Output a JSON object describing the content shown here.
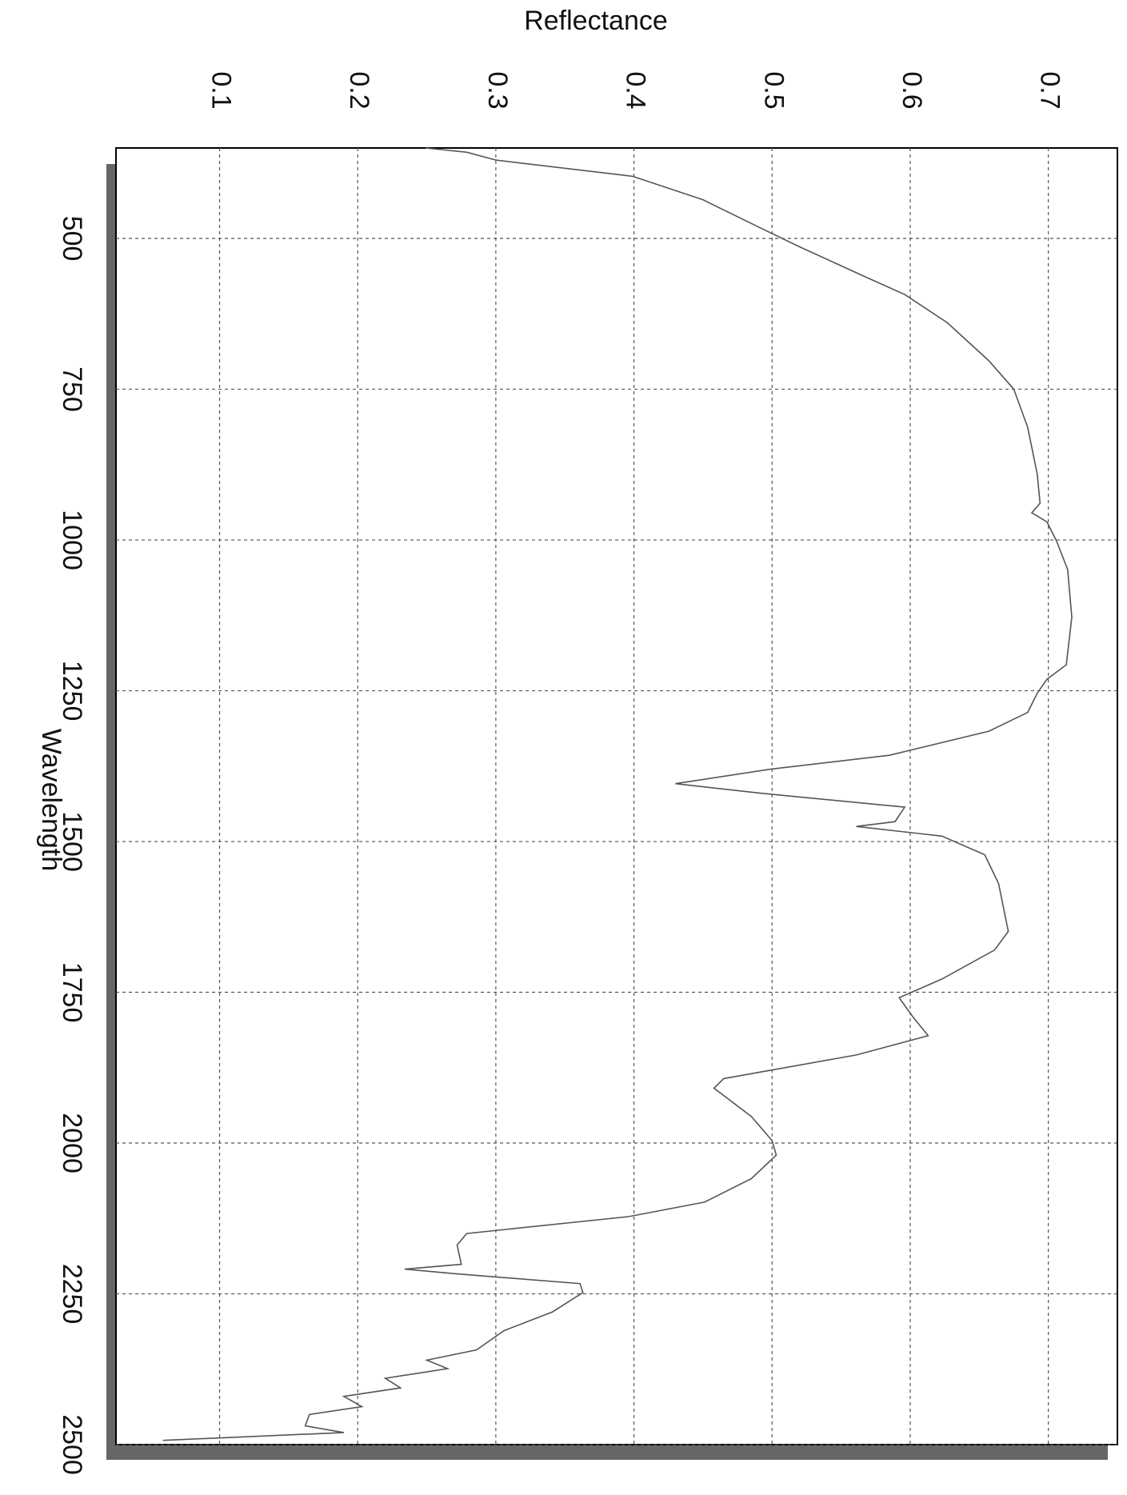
{
  "chart_data": {
    "type": "line",
    "xlabel": "Wavelength",
    "ylabel": "Reflectance",
    "x": [
      350,
      357,
      370,
      397,
      436,
      483,
      514,
      561,
      593,
      640,
      703,
      750,
      813,
      891,
      939,
      955,
      970,
      1002,
      1049,
      1128,
      1207,
      1231,
      1254,
      1286,
      1317,
      1357,
      1380,
      1404,
      1420,
      1443,
      1467,
      1475,
      1491,
      1522,
      1570,
      1649,
      1680,
      1728,
      1759,
      1791,
      1822,
      1854,
      1893,
      1909,
      1956,
      1996,
      2020,
      2059,
      2098,
      2122,
      2150,
      2169,
      2201,
      2209,
      2217,
      2233,
      2248,
      2280,
      2311,
      2343,
      2360,
      2374,
      2390,
      2406,
      2420,
      2437,
      2450,
      2469,
      2480,
      2493
    ],
    "series": [
      {
        "name": "Reflectance",
        "color": "#555555",
        "values": [
          0.249,
          0.279,
          0.3,
          0.399,
          0.45,
          0.492,
          0.52,
          0.565,
          0.596,
          0.627,
          0.657,
          0.675,
          0.685,
          0.692,
          0.694,
          0.688,
          0.699,
          0.706,
          0.714,
          0.717,
          0.713,
          0.699,
          0.692,
          0.685,
          0.657,
          0.585,
          0.499,
          0.43,
          0.492,
          0.596,
          0.589,
          0.561,
          0.623,
          0.654,
          0.664,
          0.671,
          0.661,
          0.623,
          0.592,
          0.602,
          0.613,
          0.561,
          0.465,
          0.458,
          0.485,
          0.5,
          0.503,
          0.485,
          0.451,
          0.396,
          0.279,
          0.272,
          0.275,
          0.234,
          0.272,
          0.361,
          0.363,
          0.341,
          0.306,
          0.286,
          0.25,
          0.265,
          0.22,
          0.231,
          0.19,
          0.203,
          0.165,
          0.162,
          0.19,
          0.059
        ]
      }
    ],
    "xlim": [
      350,
      2500
    ],
    "xticks": [
      500,
      750,
      1000,
      1250,
      1500,
      1750,
      2000,
      2250,
      2500
    ],
    "ylim": [
      0.025,
      0.75
    ],
    "yticks": [
      0.1,
      0.2,
      0.3,
      0.4,
      0.5,
      0.6,
      0.7
    ],
    "grid": true
  }
}
